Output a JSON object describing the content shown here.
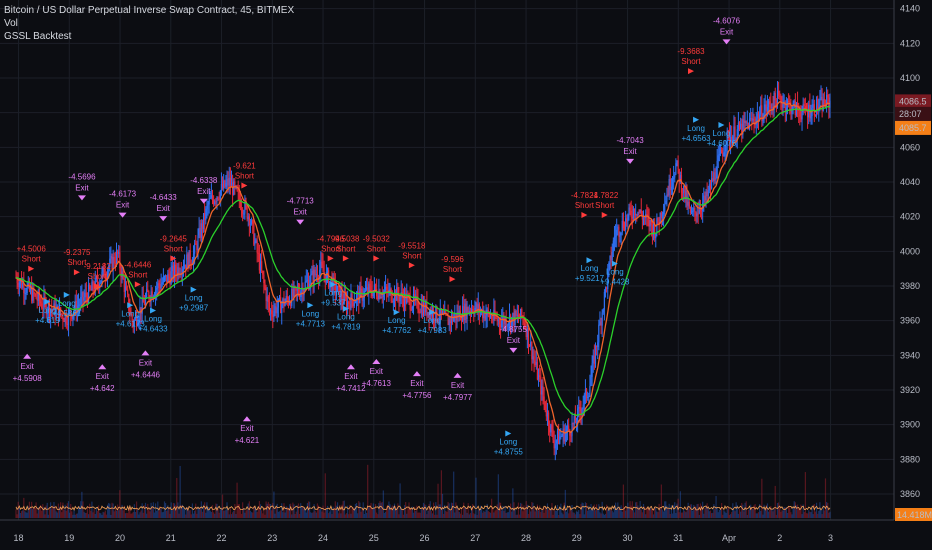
{
  "header": {
    "symbol_title": "Bitcoin / US Dollar Perpetual Inverse Swap Contract, 45, BITMEX",
    "indicator_vol": "Vol",
    "indicator_strategy": "GSSL Backtest"
  },
  "colors": {
    "background": "#0c0d12",
    "grid": "#1c1f28",
    "up": "#2f6ff2",
    "down": "#e8283a",
    "ma_fast": "#f0642b",
    "ma_slow": "#2bd02b",
    "vol_ma": "#f4a259",
    "long_color": "#34a6f4",
    "short_color": "#ff3b3b",
    "exit_color": "#e37ef6",
    "last_price_bg": "#7a1a22",
    "countdown_bg": "#3a1015",
    "prev_price_bg": "#f57f17",
    "volume_label_bg": "#f57f17"
  },
  "chart_data": {
    "type": "candlestick",
    "y_axis": {
      "min": 3845,
      "max": 4145,
      "ticks": [
        3860,
        3880,
        3900,
        3920,
        3940,
        3960,
        3980,
        4000,
        4020,
        4040,
        4060,
        4080,
        4100,
        4120,
        4140
      ]
    },
    "x_axis": {
      "ticks": [
        "18",
        "19",
        "20",
        "21",
        "22",
        "23",
        "24",
        "25",
        "26",
        "27",
        "28",
        "29",
        "30",
        "31",
        "Apr",
        "2",
        "3"
      ]
    },
    "price_path": [
      [
        0,
        3985
      ],
      [
        0.5,
        3970
      ],
      [
        1,
        3962
      ],
      [
        1.5,
        3978
      ],
      [
        2,
        3998
      ],
      [
        2.3,
        3958
      ],
      [
        2.6,
        3975
      ],
      [
        3,
        3985
      ],
      [
        3.5,
        3998
      ],
      [
        3.8,
        4028
      ],
      [
        4.2,
        4040
      ],
      [
        4.6,
        4020
      ],
      [
        5,
        3965
      ],
      [
        5.5,
        3975
      ],
      [
        6,
        3990
      ],
      [
        6.5,
        3970
      ],
      [
        7,
        3978
      ],
      [
        7.5,
        3975
      ],
      [
        8,
        3968
      ],
      [
        8.5,
        3960
      ],
      [
        9,
        3968
      ],
      [
        9.5,
        3960
      ],
      [
        10,
        3962
      ],
      [
        10.6,
        3890
      ],
      [
        11,
        3900
      ],
      [
        11.3,
        3922
      ],
      [
        11.8,
        4010
      ],
      [
        12.2,
        4025
      ],
      [
        12.6,
        4012
      ],
      [
        13,
        4050
      ],
      [
        13.3,
        4020
      ],
      [
        13.6,
        4030
      ],
      [
        14,
        4065
      ],
      [
        14.5,
        4075
      ],
      [
        15,
        4088
      ],
      [
        15.5,
        4080
      ],
      [
        16,
        4086
      ]
    ],
    "last_price": "4086.5",
    "countdown": "28:07",
    "prev_price": "4085.7",
    "volume_label": "14.418M",
    "signals": [
      {
        "type": "exit",
        "x": 0.22,
        "y": 3938,
        "value": "+4.5908"
      },
      {
        "type": "long",
        "x": 0.62,
        "y": 3968,
        "value": "+4.619"
      },
      {
        "type": "short",
        "x": 0.3,
        "y": 3994,
        "value": "+4.5006"
      },
      {
        "type": "long",
        "x": 1.0,
        "y": 3972,
        "value": "+4.5861"
      },
      {
        "type": "exit",
        "x": 1.3,
        "y": 4030,
        "value": "-4.5696"
      },
      {
        "type": "short",
        "x": 1.2,
        "y": 3992,
        "value": "-9.2375"
      },
      {
        "type": "short",
        "x": 1.6,
        "y": 3984,
        "value": "-9.2182"
      },
      {
        "type": "exit",
        "x": 1.7,
        "y": 3932,
        "value": "+4.642"
      },
      {
        "type": "long",
        "x": 2.25,
        "y": 3966,
        "value": "+4.6173"
      },
      {
        "type": "exit",
        "x": 2.1,
        "y": 4020,
        "value": "-4.6173"
      },
      {
        "type": "short",
        "x": 2.4,
        "y": 3985,
        "value": "-4.6446"
      },
      {
        "type": "exit",
        "x": 2.55,
        "y": 3940,
        "value": "+4.6446"
      },
      {
        "type": "long",
        "x": 2.7,
        "y": 3963,
        "value": "+4.6433"
      },
      {
        "type": "exit",
        "x": 2.9,
        "y": 4018,
        "value": "-4.6433"
      },
      {
        "type": "short",
        "x": 3.1,
        "y": 4000,
        "value": "-9.2645"
      },
      {
        "type": "long",
        "x": 3.5,
        "y": 3975,
        "value": "+9.2987"
      },
      {
        "type": "exit",
        "x": 3.7,
        "y": 4028,
        "value": "-4.6338"
      },
      {
        "type": "short",
        "x": 4.5,
        "y": 4042,
        "value": "-9.621"
      },
      {
        "type": "exit",
        "x": 4.55,
        "y": 3902,
        "value": "+4.621"
      },
      {
        "type": "exit",
        "x": 5.6,
        "y": 4016,
        "value": "-4.7713"
      },
      {
        "type": "long",
        "x": 5.8,
        "y": 3966,
        "value": "+4.7713"
      },
      {
        "type": "short",
        "x": 6.2,
        "y": 4000,
        "value": "-4.7946"
      },
      {
        "type": "long",
        "x": 6.25,
        "y": 3978,
        "value": "+9.537"
      },
      {
        "type": "short",
        "x": 6.5,
        "y": 4000,
        "value": "-9.5038"
      },
      {
        "type": "exit",
        "x": 6.6,
        "y": 3932,
        "value": "+4.7412"
      },
      {
        "type": "long",
        "x": 6.5,
        "y": 3964,
        "value": "+4.7819"
      },
      {
        "type": "short",
        "x": 7.1,
        "y": 4000,
        "value": "-9.5032"
      },
      {
        "type": "exit",
        "x": 7.1,
        "y": 3935,
        "value": "+4.7613"
      },
      {
        "type": "long",
        "x": 7.5,
        "y": 3962,
        "value": "+4.7762"
      },
      {
        "type": "short",
        "x": 7.8,
        "y": 3996,
        "value": "-9.5518"
      },
      {
        "type": "exit",
        "x": 7.9,
        "y": 3928,
        "value": "+4.7756"
      },
      {
        "type": "long",
        "x": 8.2,
        "y": 3962,
        "value": "+4.7983"
      },
      {
        "type": "short",
        "x": 8.6,
        "y": 3988,
        "value": "-9.596"
      },
      {
        "type": "exit",
        "x": 8.7,
        "y": 3927,
        "value": "+4.7977"
      },
      {
        "type": "exit",
        "x": 9.8,
        "y": 3942,
        "value": "-4.8755"
      },
      {
        "type": "long",
        "x": 9.7,
        "y": 3892,
        "value": "+4.8755"
      },
      {
        "type": "short",
        "x": 11.2,
        "y": 4025,
        "value": "-4.7821"
      },
      {
        "type": "long",
        "x": 11.3,
        "y": 3992,
        "value": "+9.5217"
      },
      {
        "type": "short",
        "x": 11.6,
        "y": 4025,
        "value": "-4.7822"
      },
      {
        "type": "long",
        "x": 11.8,
        "y": 3990,
        "value": "+9.4428"
      },
      {
        "type": "exit",
        "x": 12.1,
        "y": 4051,
        "value": "-4.7043"
      },
      {
        "type": "short",
        "x": 13.3,
        "y": 4108,
        "value": "-9.3683"
      },
      {
        "type": "long",
        "x": 13.4,
        "y": 4073,
        "value": "+4.6563"
      },
      {
        "type": "exit",
        "x": 14.0,
        "y": 4120,
        "value": "-4.6076"
      },
      {
        "type": "long",
        "x": 13.9,
        "y": 4070,
        "value": "+4.6076"
      }
    ]
  }
}
